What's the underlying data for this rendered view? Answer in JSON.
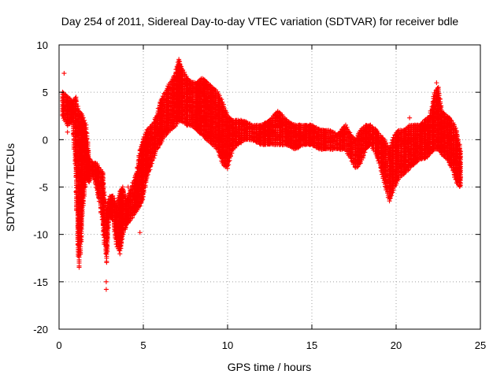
{
  "chart_data": {
    "type": "scatter",
    "title": "Day 254 of 2011, Sidereal Day-to-day VTEC variation (SDTVAR) for receiver bdle",
    "xlabel": "GPS time / hours",
    "ylabel": "SDTVAR / TECUs",
    "xlim": [
      0,
      25
    ],
    "ylim": [
      -20,
      10
    ],
    "xticks": [
      0,
      5,
      10,
      15,
      20,
      25
    ],
    "xtick_labels": [
      "0",
      "5",
      "10",
      "15",
      "20",
      "25"
    ],
    "yticks": [
      -20,
      -15,
      -10,
      -5,
      0,
      5,
      10
    ],
    "ytick_labels": [
      "-20",
      "-15",
      "-10",
      "-5",
      "0",
      "5",
      "10"
    ],
    "grid": true,
    "marker": "+",
    "series_color": "#ff0000",
    "series": [
      {
        "name": "SDTVAR",
        "envelope": [
          [
            0.2,
            2.5,
            5.0
          ],
          [
            0.5,
            1.5,
            4.5
          ],
          [
            0.8,
            2.0,
            4.0
          ],
          [
            1.0,
            -4.0,
            4.5
          ],
          [
            1.1,
            -11.0,
            3.5
          ],
          [
            1.2,
            -13.5,
            3.0
          ],
          [
            1.4,
            -8.0,
            2.5
          ],
          [
            1.6,
            -4.0,
            1.5
          ],
          [
            1.8,
            -4.5,
            -2.0
          ],
          [
            2.0,
            -3.5,
            -2.5
          ],
          [
            2.2,
            -5.0,
            -2.5
          ],
          [
            2.4,
            -6.5,
            -3.0
          ],
          [
            2.6,
            -9.0,
            -3.5
          ],
          [
            2.8,
            -13.0,
            -7.5
          ],
          [
            3.0,
            -8.0,
            -6.0
          ],
          [
            3.2,
            -8.5,
            -6.0
          ],
          [
            3.4,
            -11.0,
            -7.0
          ],
          [
            3.6,
            -12.0,
            -5.5
          ],
          [
            3.8,
            -10.0,
            -5.0
          ],
          [
            4.0,
            -9.0,
            -6.5
          ],
          [
            4.6,
            -7.5,
            -3.5
          ],
          [
            4.8,
            -7.0,
            -1.0
          ],
          [
            5.0,
            -6.0,
            0.0
          ],
          [
            5.2,
            -4.0,
            1.0
          ],
          [
            5.5,
            -2.5,
            1.5
          ],
          [
            5.8,
            -1.0,
            2.5
          ],
          [
            6.0,
            -0.5,
            4.0
          ],
          [
            6.3,
            0.5,
            5.0
          ],
          [
            6.6,
            1.0,
            6.0
          ],
          [
            6.9,
            1.5,
            7.0
          ],
          [
            7.1,
            2.0,
            8.5
          ],
          [
            7.3,
            2.0,
            7.5
          ],
          [
            7.6,
            1.5,
            6.5
          ],
          [
            7.9,
            1.5,
            6.0
          ],
          [
            8.2,
            1.0,
            6.0
          ],
          [
            8.5,
            0.5,
            6.5
          ],
          [
            8.8,
            0.0,
            6.0
          ],
          [
            9.1,
            -0.5,
            5.5
          ],
          [
            9.4,
            -1.0,
            5.0
          ],
          [
            9.7,
            -2.5,
            4.0
          ],
          [
            10.0,
            -3.0,
            2.5
          ],
          [
            10.3,
            -1.0,
            2.0
          ],
          [
            10.6,
            -0.5,
            2.0
          ],
          [
            11.0,
            0.0,
            2.0
          ],
          [
            11.5,
            0.0,
            1.5
          ],
          [
            12.0,
            -0.5,
            1.5
          ],
          [
            12.5,
            -0.5,
            2.0
          ],
          [
            13.0,
            -0.5,
            3.0
          ],
          [
            13.5,
            -0.5,
            2.0
          ],
          [
            14.0,
            -1.0,
            1.5
          ],
          [
            14.5,
            -0.5,
            1.5
          ],
          [
            15.0,
            -0.5,
            1.5
          ],
          [
            15.5,
            -1.0,
            1.0
          ],
          [
            16.0,
            -1.0,
            1.0
          ],
          [
            16.5,
            -1.0,
            0.5
          ],
          [
            17.0,
            -1.0,
            1.5
          ],
          [
            17.3,
            -2.0,
            0.5
          ],
          [
            17.6,
            -3.0,
            0.0
          ],
          [
            17.9,
            -2.5,
            1.0
          ],
          [
            18.2,
            -1.0,
            1.5
          ],
          [
            18.5,
            -0.5,
            1.5
          ],
          [
            18.8,
            -1.5,
            1.0
          ],
          [
            19.0,
            -2.5,
            0.5
          ],
          [
            19.3,
            -4.5,
            0.0
          ],
          [
            19.6,
            -6.5,
            -1.0
          ],
          [
            19.9,
            -5.0,
            0.5
          ],
          [
            20.2,
            -4.0,
            1.0
          ],
          [
            20.5,
            -3.5,
            1.0
          ],
          [
            20.8,
            -3.0,
            1.5
          ],
          [
            21.1,
            -2.5,
            1.5
          ],
          [
            21.4,
            -2.0,
            1.5
          ],
          [
            21.7,
            -2.0,
            2.0
          ],
          [
            22.0,
            -1.5,
            2.5
          ],
          [
            22.3,
            -1.0,
            5.0
          ],
          [
            22.5,
            -1.0,
            5.5
          ],
          [
            22.7,
            -1.5,
            3.0
          ],
          [
            23.0,
            -2.0,
            2.5
          ],
          [
            23.3,
            -3.0,
            2.0
          ],
          [
            23.6,
            -4.5,
            1.0
          ],
          [
            23.8,
            -5.0,
            -1.0
          ],
          [
            23.9,
            -4.5,
            -1.5
          ]
        ],
        "outliers": [
          [
            0.3,
            7.0
          ],
          [
            0.5,
            0.8
          ],
          [
            1.0,
            -5.5
          ],
          [
            1.1,
            -6.5
          ],
          [
            2.8,
            -15.0
          ],
          [
            2.8,
            -15.8
          ],
          [
            4.8,
            -9.8
          ],
          [
            4.1,
            -5.0
          ],
          [
            20.8,
            2.3
          ],
          [
            22.4,
            6.0
          ]
        ]
      }
    ]
  }
}
